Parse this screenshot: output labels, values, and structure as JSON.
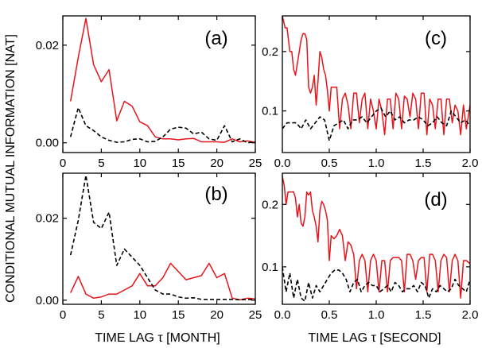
{
  "figure": {
    "ylabel": "CONDITIONAL MUTUAL INFORMATION [NAT]",
    "xlabel_left": "TIME LAG τ [MONTH]",
    "xlabel_right": "TIME LAG τ [SECOND]"
  },
  "colors": {
    "solid": "#e8141b",
    "dashed": "#000000"
  },
  "chart_data": [
    {
      "type": "line",
      "panel_label": "(a)",
      "xlim": [
        0,
        25
      ],
      "ylim": [
        -0.002,
        0.026
      ],
      "xticks": [
        "0",
        "5",
        "10",
        "15",
        "20",
        "25"
      ],
      "xtick_values": [
        0,
        5,
        10,
        15,
        20,
        25
      ],
      "yticks": [
        "0.00",
        "0.02"
      ],
      "ytick_values": [
        0,
        0.02
      ],
      "show_xtick_labels": true,
      "series": [
        {
          "style": "solid",
          "color": "#e8141b",
          "x": [
            1,
            2,
            3,
            4,
            5,
            6,
            7,
            8,
            9,
            10,
            11,
            12,
            13,
            14,
            15,
            16,
            17,
            18,
            19,
            20,
            21,
            22,
            23,
            24,
            25
          ],
          "y": [
            0.0085,
            0.0175,
            0.0255,
            0.016,
            0.0125,
            0.015,
            0.0045,
            0.0085,
            0.0075,
            0.0043,
            0.0035,
            0.0012,
            0.0008,
            0.0008,
            0.0006,
            0.0008,
            0.0009,
            0.0002,
            0.0002,
            0.0002,
            0.0001,
            0.0008,
            0.0002,
            0.0004,
            0.0001
          ]
        },
        {
          "style": "dashed",
          "color": "#000000",
          "x": [
            1,
            2,
            3,
            4,
            5,
            6,
            7,
            8,
            9,
            10,
            11,
            12,
            13,
            14,
            15,
            16,
            17,
            18,
            19,
            20,
            21,
            22,
            23,
            24,
            25
          ],
          "y": [
            0.0012,
            0.0072,
            0.0035,
            0.0025,
            0.0012,
            0.0005,
            0.0001,
            0.0002,
            0.0007,
            0.0008,
            0.0002,
            0.0003,
            0.0012,
            0.0028,
            0.0032,
            0.003,
            0.0018,
            0.0022,
            0.0008,
            0.0005,
            0.0035,
            0.0002,
            0.0008,
            0.0,
            0.0002
          ]
        }
      ]
    },
    {
      "type": "line",
      "panel_label": "(b)",
      "xlim": [
        0,
        25
      ],
      "ylim": [
        -0.001,
        0.031
      ],
      "xticks": [
        "0",
        "5",
        "10",
        "15",
        "20",
        "25"
      ],
      "xtick_values": [
        0,
        5,
        10,
        15,
        20,
        25
      ],
      "yticks": [
        "0.00",
        "0.02"
      ],
      "ytick_values": [
        0,
        0.02
      ],
      "show_xtick_labels": true,
      "series": [
        {
          "style": "solid",
          "color": "#e8141b",
          "x": [
            1,
            2,
            3,
            4,
            5,
            6,
            7,
            8,
            9,
            10,
            11,
            12,
            13,
            14,
            15,
            16,
            17,
            18,
            19,
            20,
            21,
            22,
            23,
            24,
            25
          ],
          "y": [
            0.0018,
            0.0058,
            0.0015,
            0.0005,
            0.0008,
            0.0015,
            0.0015,
            0.0025,
            0.0035,
            0.0065,
            0.0035,
            0.0035,
            0.0055,
            0.009,
            0.007,
            0.005,
            0.0055,
            0.006,
            0.009,
            0.0055,
            0.0065,
            0.0005,
            0.0001,
            0.0005,
            0.0003
          ]
        },
        {
          "style": "dashed",
          "color": "#000000",
          "x": [
            1,
            2,
            3,
            4,
            5,
            6,
            7,
            8,
            9,
            10,
            11,
            12,
            13,
            14,
            15,
            16,
            17,
            18,
            19,
            20,
            21,
            22,
            23,
            24,
            25
          ],
          "y": [
            0.011,
            0.0195,
            0.0305,
            0.019,
            0.0175,
            0.0215,
            0.0085,
            0.0125,
            0.0105,
            0.0085,
            0.0055,
            0.0025,
            0.0015,
            0.0015,
            0.0008,
            0.0005,
            0.0006,
            0.0002,
            0.0002,
            0.0002,
            0.0002,
            0.0002,
            0.0001,
            0.0002,
            0.0001
          ]
        }
      ]
    },
    {
      "type": "line",
      "panel_label": "(c)",
      "xlim": [
        0,
        2.0
      ],
      "ylim": [
        0.03,
        0.26
      ],
      "xticks": [
        "0.0",
        "0.5",
        "1.0",
        "1.5",
        "2.0"
      ],
      "xtick_values": [
        0,
        0.5,
        1.0,
        1.5,
        2.0
      ],
      "yticks": [
        "0.1",
        "0.2"
      ],
      "ytick_values": [
        0.1,
        0.2
      ],
      "show_xtick_labels": true,
      "series": [
        {
          "style": "solid",
          "color": "#e8141b",
          "x": [
            0.0,
            0.03,
            0.05,
            0.08,
            0.1,
            0.12,
            0.14,
            0.17,
            0.2,
            0.22,
            0.24,
            0.26,
            0.28,
            0.3,
            0.32,
            0.34,
            0.36,
            0.38,
            0.4,
            0.42,
            0.44,
            0.46,
            0.48,
            0.5,
            0.52,
            0.55,
            0.58,
            0.61,
            0.64,
            0.67,
            0.7,
            0.73,
            0.76,
            0.79,
            0.82,
            0.85,
            0.88,
            0.91,
            0.94,
            0.97,
            1.0,
            1.03,
            1.06,
            1.09,
            1.12,
            1.15,
            1.18,
            1.21,
            1.24,
            1.27,
            1.3,
            1.33,
            1.36,
            1.39,
            1.42,
            1.45,
            1.48,
            1.51,
            1.54,
            1.57,
            1.6,
            1.63,
            1.66,
            1.69,
            1.72,
            1.75,
            1.78,
            1.81,
            1.84,
            1.87,
            1.9,
            1.93,
            1.96,
            2.0
          ],
          "y": [
            0.26,
            0.24,
            0.24,
            0.2,
            0.2,
            0.17,
            0.16,
            0.19,
            0.22,
            0.23,
            0.23,
            0.22,
            0.14,
            0.13,
            0.14,
            0.16,
            0.11,
            0.15,
            0.2,
            0.19,
            0.17,
            0.16,
            0.135,
            0.1,
            0.14,
            0.14,
            0.14,
            0.07,
            0.12,
            0.13,
            0.11,
            0.07,
            0.13,
            0.13,
            0.08,
            0.12,
            0.13,
            0.07,
            0.12,
            0.1,
            0.07,
            0.12,
            0.1,
            0.06,
            0.12,
            0.12,
            0.07,
            0.13,
            0.12,
            0.07,
            0.125,
            0.12,
            0.09,
            0.13,
            0.12,
            0.07,
            0.13,
            0.13,
            0.06,
            0.12,
            0.11,
            0.07,
            0.12,
            0.12,
            0.06,
            0.12,
            0.12,
            0.08,
            0.11,
            0.1,
            0.06,
            0.11,
            0.07,
            0.11
          ]
        },
        {
          "style": "dashed",
          "color": "#000000",
          "x": [
            0.0,
            0.05,
            0.1,
            0.15,
            0.2,
            0.25,
            0.3,
            0.35,
            0.4,
            0.45,
            0.5,
            0.55,
            0.6,
            0.65,
            0.7,
            0.75,
            0.8,
            0.85,
            0.9,
            0.95,
            1.0,
            1.05,
            1.1,
            1.15,
            1.2,
            1.25,
            1.3,
            1.35,
            1.4,
            1.45,
            1.5,
            1.55,
            1.6,
            1.65,
            1.7,
            1.75,
            1.8,
            1.85,
            1.9,
            1.95,
            2.0
          ],
          "y": [
            0.07,
            0.08,
            0.08,
            0.08,
            0.07,
            0.085,
            0.07,
            0.08,
            0.09,
            0.085,
            0.05,
            0.075,
            0.08,
            0.085,
            0.07,
            0.085,
            0.085,
            0.09,
            0.08,
            0.09,
            0.1,
            0.105,
            0.09,
            0.1,
            0.085,
            0.09,
            0.08,
            0.085,
            0.085,
            0.09,
            0.085,
            0.075,
            0.08,
            0.09,
            0.08,
            0.075,
            0.1,
            0.09,
            0.08,
            0.085,
            0.075
          ]
        }
      ]
    },
    {
      "type": "line",
      "panel_label": "(d)",
      "xlim": [
        0,
        2.0
      ],
      "ylim": [
        0.04,
        0.25
      ],
      "xticks": [
        "0.0",
        "0.5",
        "1.0",
        "1.5",
        "2.0"
      ],
      "xtick_values": [
        0,
        0.5,
        1.0,
        1.5,
        2.0
      ],
      "yticks": [
        "0.1",
        "0.2"
      ],
      "ytick_values": [
        0.1,
        0.2
      ],
      "show_xtick_labels": true,
      "series": [
        {
          "style": "solid",
          "color": "#e8141b",
          "x": [
            0.0,
            0.02,
            0.04,
            0.06,
            0.08,
            0.1,
            0.12,
            0.14,
            0.16,
            0.18,
            0.2,
            0.22,
            0.24,
            0.26,
            0.28,
            0.3,
            0.32,
            0.34,
            0.36,
            0.38,
            0.4,
            0.42,
            0.44,
            0.46,
            0.48,
            0.5,
            0.52,
            0.55,
            0.58,
            0.61,
            0.64,
            0.67,
            0.7,
            0.73,
            0.76,
            0.79,
            0.82,
            0.85,
            0.88,
            0.91,
            0.94,
            0.97,
            1.0,
            1.03,
            1.06,
            1.09,
            1.12,
            1.15,
            1.18,
            1.21,
            1.24,
            1.27,
            1.3,
            1.33,
            1.36,
            1.39,
            1.42,
            1.45,
            1.48,
            1.51,
            1.54,
            1.57,
            1.6,
            1.63,
            1.66,
            1.69,
            1.72,
            1.75,
            1.78,
            1.81,
            1.84,
            1.87,
            1.9,
            1.93,
            1.96,
            2.0
          ],
          "y": [
            0.245,
            0.23,
            0.2,
            0.22,
            0.22,
            0.22,
            0.22,
            0.21,
            0.18,
            0.2,
            0.17,
            0.165,
            0.18,
            0.22,
            0.215,
            0.22,
            0.19,
            0.18,
            0.165,
            0.14,
            0.19,
            0.205,
            0.2,
            0.19,
            0.175,
            0.11,
            0.15,
            0.145,
            0.15,
            0.16,
            0.15,
            0.11,
            0.14,
            0.135,
            0.12,
            0.065,
            0.11,
            0.12,
            0.11,
            0.06,
            0.11,
            0.12,
            0.11,
            0.06,
            0.11,
            0.11,
            0.06,
            0.11,
            0.115,
            0.115,
            0.115,
            0.11,
            0.06,
            0.12,
            0.12,
            0.11,
            0.08,
            0.11,
            0.115,
            0.115,
            0.06,
            0.12,
            0.12,
            0.11,
            0.06,
            0.11,
            0.12,
            0.115,
            0.06,
            0.11,
            0.12,
            0.11,
            0.05,
            0.11,
            0.11,
            0.105
          ]
        },
        {
          "style": "dashed",
          "color": "#000000",
          "x": [
            0.0,
            0.04,
            0.08,
            0.12,
            0.16,
            0.2,
            0.24,
            0.28,
            0.32,
            0.36,
            0.4,
            0.44,
            0.48,
            0.52,
            0.56,
            0.6,
            0.64,
            0.68,
            0.72,
            0.76,
            0.8,
            0.84,
            0.88,
            0.92,
            0.96,
            1.0,
            1.04,
            1.08,
            1.12,
            1.16,
            1.2,
            1.24,
            1.28,
            1.32,
            1.36,
            1.4,
            1.44,
            1.48,
            1.52,
            1.56,
            1.6,
            1.64,
            1.68,
            1.72,
            1.76,
            1.8,
            1.84,
            1.88,
            1.92,
            1.96,
            2.0
          ],
          "y": [
            0.1,
            0.06,
            0.09,
            0.05,
            0.08,
            0.05,
            0.045,
            0.075,
            0.05,
            0.07,
            0.06,
            0.07,
            0.08,
            0.09,
            0.095,
            0.095,
            0.09,
            0.08,
            0.06,
            0.075,
            0.08,
            0.06,
            0.07,
            0.075,
            0.07,
            0.07,
            0.06,
            0.065,
            0.07,
            0.06,
            0.075,
            0.07,
            0.06,
            0.065,
            0.065,
            0.07,
            0.06,
            0.075,
            0.07,
            0.05,
            0.065,
            0.06,
            0.07,
            0.065,
            0.06,
            0.065,
            0.08,
            0.07,
            0.065,
            0.06,
            0.08
          ]
        }
      ]
    }
  ]
}
